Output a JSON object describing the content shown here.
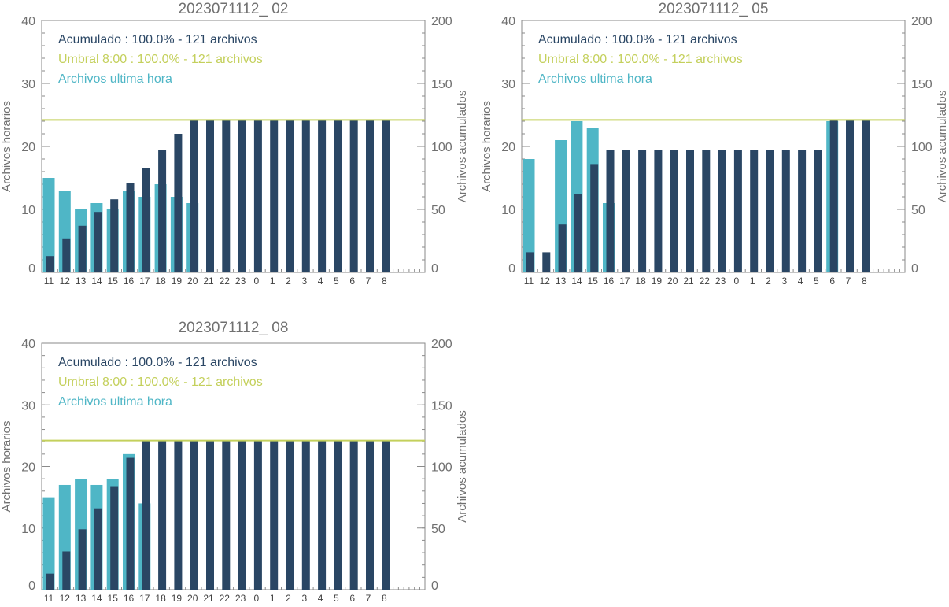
{
  "colors": {
    "hourly": "#4fb6c6",
    "cumulative": "#2a4664",
    "threshold": "#c4d05c",
    "axis": "#8a8a8a",
    "text": "#707070"
  },
  "chart_data": [
    {
      "type": "bar",
      "title": "2023071112_ 02",
      "ylabel": "Archivos horarios",
      "y2label": "Archivos acumulados",
      "ylim": [
        0,
        40
      ],
      "y2lim": [
        0,
        200
      ],
      "yticks": [
        "0",
        "10",
        "20",
        "30",
        "40"
      ],
      "y2ticks": [
        "0",
        "50",
        "100",
        "150",
        "200"
      ],
      "categories": [
        "11",
        "12",
        "13",
        "14",
        "15",
        "16",
        "17",
        "18",
        "19",
        "20",
        "21",
        "22",
        "23",
        "0",
        "1",
        "2",
        "3",
        "4",
        "5",
        "6",
        "7",
        "8"
      ],
      "legend": [
        {
          "text": "Acumulado : 100.0% - 121 archivos",
          "series": "cumulative"
        },
        {
          "text": "Umbral 8:00 : 100.0% - 121 archivos",
          "series": "threshold"
        },
        {
          "text": "Archivos ultima hora",
          "series": "hourly"
        }
      ],
      "threshold_value": 121,
      "series": [
        {
          "key": "hourly",
          "values": [
            15,
            13,
            10,
            11,
            10,
            13,
            12,
            14,
            12,
            11,
            0,
            0,
            0,
            0,
            0,
            0,
            0,
            0,
            0,
            0,
            0,
            0
          ]
        },
        {
          "key": "cumulative",
          "values": [
            13,
            27,
            37,
            48,
            58,
            71,
            83,
            97,
            110,
            121,
            121,
            121,
            121,
            121,
            121,
            121,
            121,
            121,
            121,
            121,
            121,
            121
          ]
        }
      ]
    },
    {
      "type": "bar",
      "title": "2023071112_ 05",
      "ylabel": "Archivos horarios",
      "y2label": "Archivos acumulados",
      "ylim": [
        0,
        40
      ],
      "y2lim": [
        0,
        200
      ],
      "yticks": [
        "0",
        "10",
        "20",
        "30",
        "40"
      ],
      "y2ticks": [
        "0",
        "50",
        "100",
        "150",
        "200"
      ],
      "categories": [
        "11",
        "12",
        "13",
        "14",
        "15",
        "16",
        "17",
        "18",
        "19",
        "20",
        "21",
        "22",
        "23",
        "0",
        "1",
        "2",
        "3",
        "4",
        "5",
        "6",
        "7",
        "8"
      ],
      "legend": [
        {
          "text": "Acumulado : 100.0% - 121 archivos",
          "series": "cumulative"
        },
        {
          "text": "Umbral 8:00 : 100.0% - 121 archivos",
          "series": "threshold"
        },
        {
          "text": "Archivos ultima hora",
          "series": "hourly"
        }
      ],
      "threshold_value": 121,
      "series": [
        {
          "key": "hourly",
          "values": [
            18,
            0,
            21,
            24,
            23,
            11,
            0,
            0,
            0,
            0,
            0,
            0,
            0,
            0,
            0,
            0,
            0,
            0,
            0,
            24,
            0,
            0
          ]
        },
        {
          "key": "cumulative",
          "values": [
            16,
            16,
            38,
            62,
            86,
            97,
            97,
            97,
            97,
            97,
            97,
            97,
            97,
            97,
            97,
            97,
            97,
            97,
            97,
            121,
            121,
            121
          ]
        }
      ]
    },
    {
      "type": "bar",
      "title": "2023071112_ 08",
      "ylabel": "Archivos horarios",
      "y2label": "Archivos acumulados",
      "ylim": [
        0,
        40
      ],
      "y2lim": [
        0,
        200
      ],
      "yticks": [
        "0",
        "10",
        "20",
        "30",
        "40"
      ],
      "y2ticks": [
        "0",
        "50",
        "100",
        "150",
        "200"
      ],
      "categories": [
        "11",
        "12",
        "13",
        "14",
        "15",
        "16",
        "17",
        "18",
        "19",
        "20",
        "21",
        "22",
        "23",
        "0",
        "1",
        "2",
        "3",
        "4",
        "5",
        "6",
        "7",
        "8"
      ],
      "legend": [
        {
          "text": "Acumulado : 100.0% - 121 archivos",
          "series": "cumulative"
        },
        {
          "text": "Umbral 8:00 : 100.0% - 121 archivos",
          "series": "threshold"
        },
        {
          "text": "Archivos ultima hora",
          "series": "hourly"
        }
      ],
      "threshold_value": 121,
      "series": [
        {
          "key": "hourly",
          "values": [
            15,
            17,
            18,
            17,
            18,
            22,
            14,
            0,
            0,
            0,
            0,
            0,
            0,
            0,
            0,
            0,
            0,
            0,
            0,
            0,
            0,
            0
          ]
        },
        {
          "key": "cumulative",
          "values": [
            13,
            31,
            49,
            66,
            84,
            107,
            121,
            121,
            121,
            121,
            121,
            121,
            121,
            121,
            121,
            121,
            121,
            121,
            121,
            121,
            121,
            121
          ]
        }
      ]
    }
  ]
}
